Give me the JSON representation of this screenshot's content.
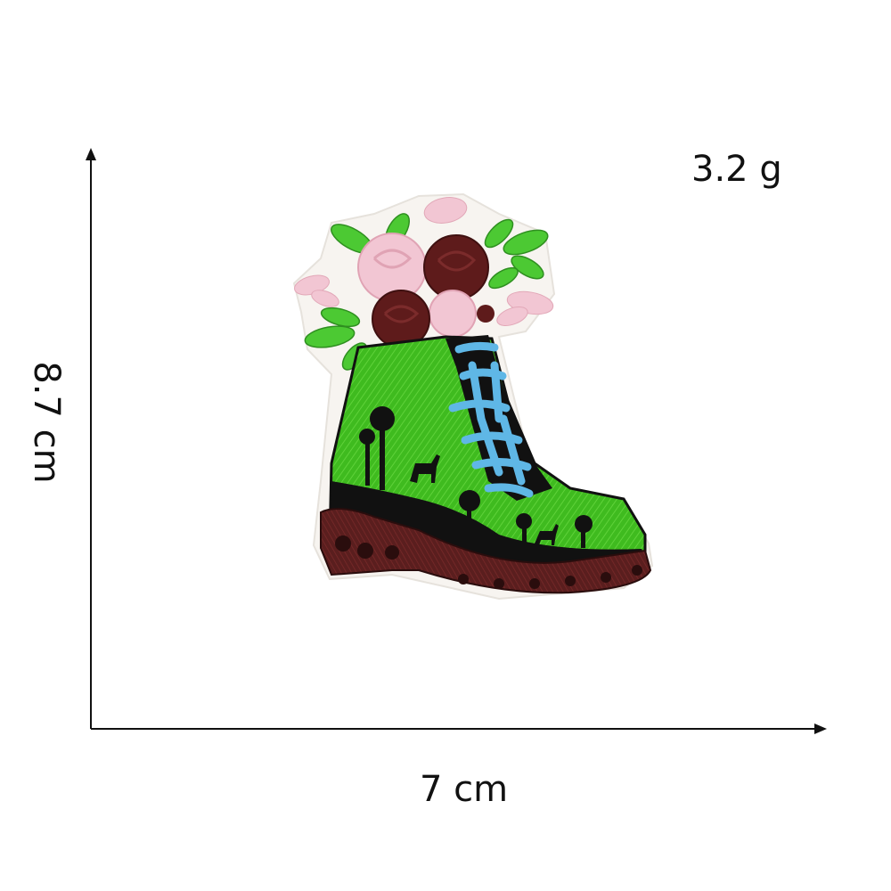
{
  "weight": "3.2 g",
  "height": "8.7 cm",
  "width": "7 cm",
  "colors": {
    "boot": "#3fbb1f",
    "sole": "#5a1e1e",
    "laces": "#5fb7e6",
    "rose_dark": "#5e1b1b",
    "rose_pink": "#f2c6d3",
    "leaf": "#4cc933"
  }
}
